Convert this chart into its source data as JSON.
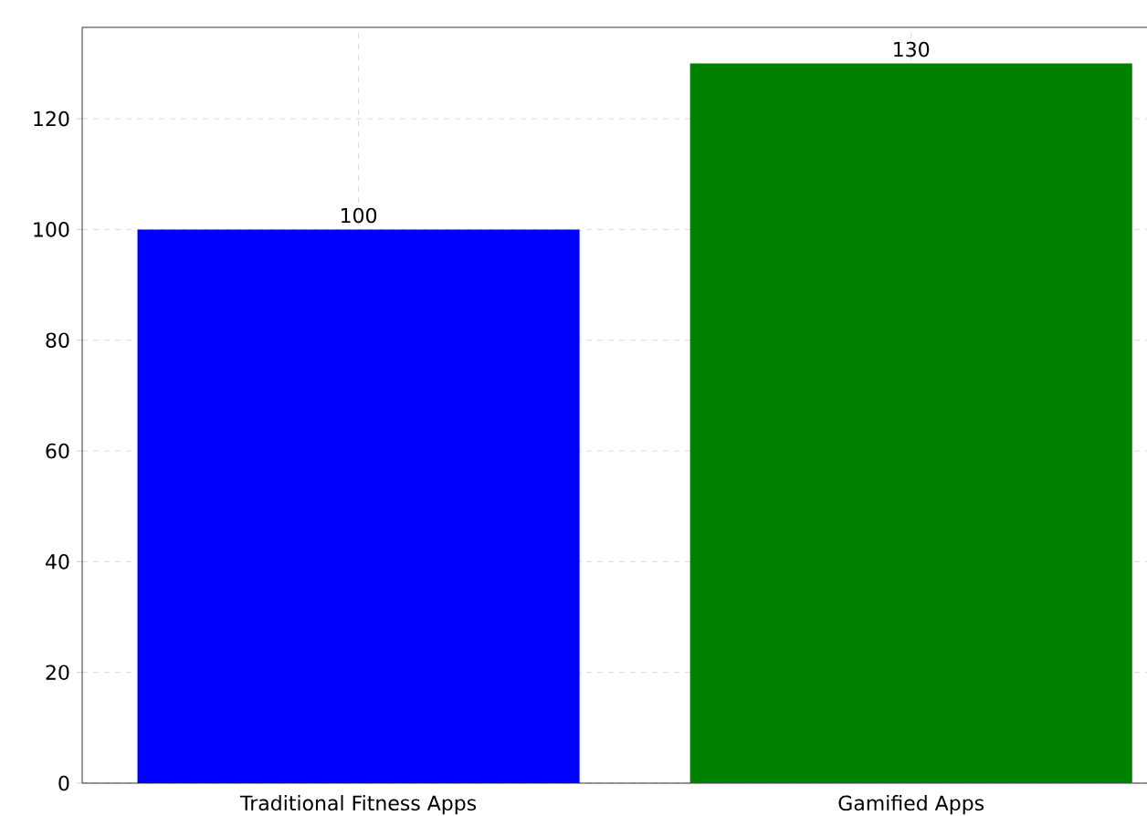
{
  "chart_data": {
    "type": "bar",
    "categories": [
      "Traditional Fitness Apps",
      "Gamified Apps"
    ],
    "values": [
      100,
      130
    ],
    "colors": [
      "#0000ff",
      "#008000"
    ],
    "ylim": [
      0,
      136.5
    ],
    "yticks": [
      0,
      20,
      40,
      60,
      80,
      100,
      120
    ],
    "grid": true,
    "data_labels": true
  }
}
